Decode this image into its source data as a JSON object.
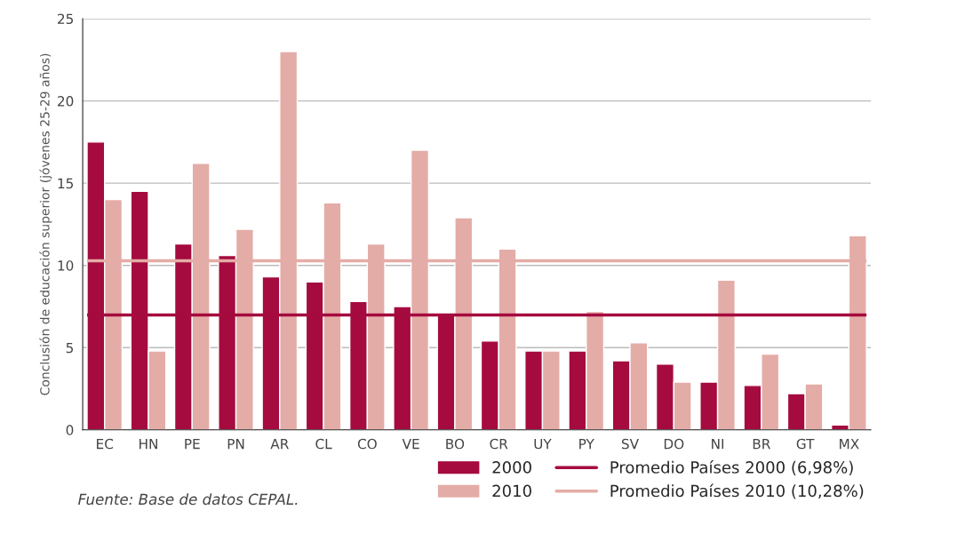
{
  "chart_data": {
    "type": "bar",
    "ylabel": "Conclusión de educación superior (jóvenes 25-29 años)",
    "categories": [
      "EC",
      "HN",
      "PE",
      "PN",
      "AR",
      "CL",
      "CO",
      "VE",
      "BO",
      "CR",
      "UY",
      "PY",
      "SV",
      "DO",
      "NI",
      "BR",
      "GT",
      "MX"
    ],
    "series": [
      {
        "name": "2000",
        "color": "#a50b3e",
        "values": [
          17.5,
          14.5,
          11.3,
          10.6,
          9.3,
          9.0,
          7.8,
          7.5,
          7.0,
          5.4,
          4.8,
          4.8,
          4.2,
          4.0,
          2.9,
          2.7,
          2.2,
          0.3
        ]
      },
      {
        "name": "2010",
        "color": "#e4aca7",
        "values": [
          14.0,
          4.8,
          16.2,
          12.2,
          23.0,
          13.8,
          11.3,
          17.0,
          12.9,
          11.0,
          4.8,
          7.2,
          5.3,
          2.9,
          9.1,
          4.6,
          2.8,
          11.8
        ]
      }
    ],
    "ref_lines": [
      {
        "axis": "y",
        "value": 6.98,
        "label": "Promedio Países 2000 (6,98%)",
        "color": "#a50b3e"
      },
      {
        "axis": "y",
        "value": 10.28,
        "label": "Promedio Países 2010 (10,28%)",
        "color": "#e4aca7"
      }
    ],
    "ylim": [
      0,
      25
    ],
    "yticks": [
      0,
      5,
      10,
      15,
      20,
      25
    ],
    "grid": "y",
    "legend": "bottom right",
    "annotations": [
      "Fuente: Base de datos CEPAL."
    ]
  }
}
